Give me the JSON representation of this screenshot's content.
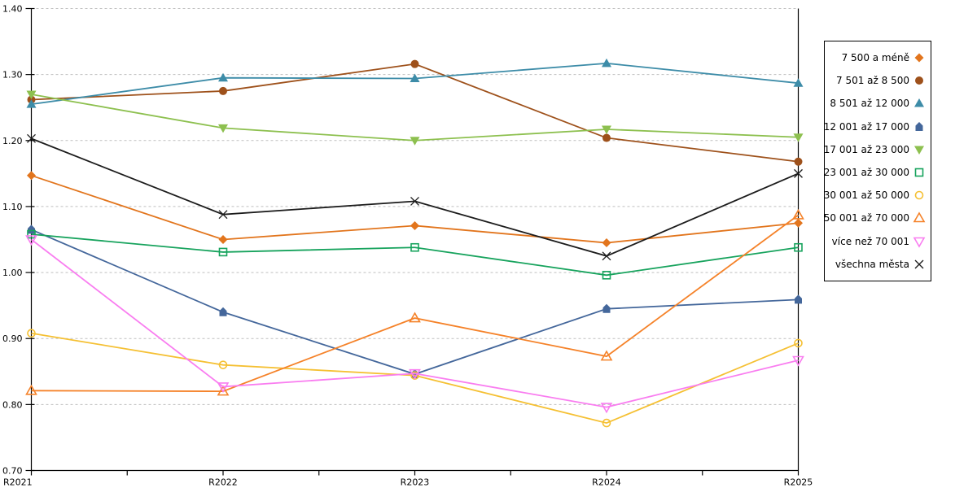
{
  "chart_data": {
    "type": "line",
    "title": "",
    "xlabel": "",
    "ylabel": "",
    "x_labels": [
      "R2021",
      "R2022",
      "R2023",
      "R2024",
      "R2025"
    ],
    "ylim": [
      0.7,
      1.4
    ],
    "y_ticks": [
      0.7,
      0.8,
      0.9,
      1.0,
      1.1,
      1.2,
      1.3,
      1.4
    ],
    "grid": "horizontal-dashed",
    "grid_color": "#BFBFBF",
    "axis_color": "#000000",
    "legend_position": "right",
    "series": [
      {
        "name": "7 500 a méně",
        "color": "#E2751D",
        "marker": "diamond-filled",
        "values": [
          1.147,
          1.05,
          1.071,
          1.045,
          1.075
        ]
      },
      {
        "name": "7 501 až 8 500",
        "color": "#9E511B",
        "marker": "circle-filled",
        "values": [
          1.262,
          1.275,
          1.316,
          1.204,
          1.168
        ]
      },
      {
        "name": "8 501 až 12 000",
        "color": "#3D8CA8",
        "marker": "triangle-up-filled",
        "values": [
          1.255,
          1.295,
          1.294,
          1.317,
          1.287
        ]
      },
      {
        "name": "12 001 až 17 000",
        "color": "#44679B",
        "marker": "pentagon-filled",
        "values": [
          1.065,
          0.94,
          0.846,
          0.945,
          0.959
        ]
      },
      {
        "name": "17 001 až 23 000",
        "color": "#8DC04F",
        "marker": "triangle-down-filled",
        "values": [
          1.27,
          1.219,
          1.2,
          1.217,
          1.205
        ]
      },
      {
        "name": "23 001 až 30 000",
        "color": "#17A35D",
        "marker": "square-outline",
        "values": [
          1.058,
          1.031,
          1.038,
          0.996,
          1.038
        ]
      },
      {
        "name": "30 001 až 50 000",
        "color": "#F5C033",
        "marker": "circle-outline",
        "values": [
          0.908,
          0.86,
          0.844,
          0.772,
          0.893
        ]
      },
      {
        "name": "50 001 až 70 000",
        "color": "#F58229",
        "marker": "triangle-up-outline",
        "values": [
          0.821,
          0.82,
          0.931,
          0.873,
          1.087
        ]
      },
      {
        "name": "více než 70 001",
        "color": "#F97DF0",
        "marker": "triangle-down-outline",
        "values": [
          1.05,
          0.827,
          0.847,
          0.796,
          0.867
        ]
      },
      {
        "name": "všechna města",
        "color": "#1C1C1C",
        "marker": "x",
        "values": [
          1.203,
          1.088,
          1.108,
          1.025,
          1.15
        ]
      }
    ]
  }
}
